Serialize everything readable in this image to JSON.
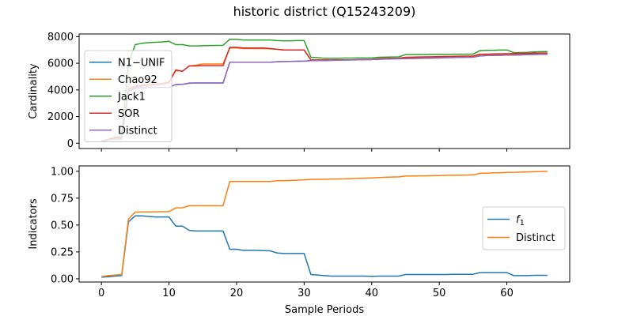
{
  "figure": {
    "title": "historic district (Q15243209)",
    "xlabel": "Sample Periods"
  },
  "chart_data": [
    {
      "type": "line",
      "ylabel": "Cardinality",
      "xlim": [
        -3.3,
        69.3
      ],
      "ylim": [
        -400,
        8200
      ],
      "xticks": [
        0,
        10,
        20,
        30,
        40,
        50,
        60
      ],
      "yticks": [
        0,
        2000,
        4000,
        6000,
        8000
      ],
      "legend_position": "upper-left",
      "series": [
        {
          "name": "N1−UNIF",
          "color": "#1f77b4",
          "x": [
            0,
            1,
            2,
            3,
            4,
            5,
            6,
            7,
            8,
            9,
            10,
            11,
            12,
            13,
            14,
            15,
            16,
            17,
            18,
            19,
            20,
            21,
            22,
            23,
            24,
            25,
            26,
            27,
            28,
            29,
            30,
            31,
            32,
            33,
            34,
            35,
            36,
            37,
            38,
            39,
            40,
            41,
            42,
            43,
            44,
            45,
            46,
            47,
            48,
            49,
            50,
            51,
            52,
            53,
            54,
            55,
            56,
            57,
            58,
            59,
            60,
            61,
            62,
            63,
            64,
            65,
            66
          ],
          "y": [
            120,
            250,
            300,
            320,
            3950,
            4150,
            4180,
            4200,
            4200,
            4200,
            4200,
            4400,
            4420,
            4500,
            4520,
            4520,
            4520,
            4520,
            4520,
            6080,
            6080,
            6080,
            6080,
            6080,
            6080,
            6080,
            6120,
            6130,
            6140,
            6150,
            6160,
            6200,
            6200,
            6200,
            6220,
            6230,
            6240,
            6250,
            6260,
            6270,
            6280,
            6300,
            6320,
            6330,
            6340,
            6350,
            6360,
            6370,
            6380,
            6390,
            6400,
            6420,
            6430,
            6440,
            6450,
            6460,
            6550,
            6580,
            6590,
            6600,
            6610,
            6620,
            6630,
            6650,
            6660,
            6670,
            6680
          ]
        },
        {
          "name": "Chao92",
          "color": "#ff7f0e",
          "x": [
            0,
            1,
            2,
            3,
            4,
            5,
            6,
            7,
            8,
            9,
            10,
            11,
            12,
            13,
            14,
            15,
            16,
            17,
            18,
            19,
            20,
            21,
            22,
            23,
            24,
            25,
            26,
            27,
            28,
            29,
            30,
            31,
            32,
            33,
            34,
            35,
            36,
            37,
            38,
            39,
            40,
            41,
            42,
            43,
            44,
            45,
            46,
            47,
            48,
            49,
            50,
            51,
            52,
            53,
            54,
            55,
            56,
            57,
            58,
            59,
            60,
            61,
            62,
            63,
            64,
            65,
            66
          ],
          "y": [
            130,
            260,
            330,
            400,
            4100,
            4300,
            4350,
            4400,
            4450,
            4500,
            4600,
            5450,
            5400,
            5800,
            5850,
            5950,
            5950,
            5950,
            5950,
            7150,
            7150,
            7100,
            7100,
            7100,
            7100,
            7080,
            7050,
            7000,
            7000,
            7000,
            7000,
            6250,
            6250,
            6250,
            6250,
            6260,
            6260,
            6260,
            6270,
            6280,
            6290,
            6350,
            6360,
            6370,
            6380,
            6400,
            6420,
            6430,
            6440,
            6450,
            6460,
            6470,
            6480,
            6480,
            6490,
            6500,
            6650,
            6660,
            6670,
            6680,
            6690,
            6700,
            6710,
            6720,
            6730,
            6740,
            6750
          ]
        },
        {
          "name": "Jack1",
          "color": "#2ca02c",
          "x": [
            0,
            1,
            2,
            3,
            4,
            5,
            6,
            7,
            8,
            9,
            10,
            11,
            12,
            13,
            14,
            15,
            16,
            17,
            18,
            19,
            20,
            21,
            22,
            23,
            24,
            25,
            26,
            27,
            28,
            29,
            30,
            31,
            32,
            33,
            34,
            35,
            36,
            37,
            38,
            39,
            40,
            41,
            42,
            43,
            44,
            45,
            46,
            47,
            48,
            49,
            50,
            51,
            52,
            53,
            54,
            55,
            56,
            57,
            58,
            59,
            60,
            61,
            62,
            63,
            64,
            65,
            66
          ],
          "y": [
            150,
            300,
            450,
            500,
            6000,
            7400,
            7500,
            7550,
            7580,
            7600,
            7650,
            7400,
            7400,
            7300,
            7300,
            7320,
            7330,
            7340,
            7350,
            7800,
            7800,
            7750,
            7750,
            7750,
            7750,
            7750,
            7700,
            7680,
            7690,
            7700,
            7700,
            6450,
            6420,
            6380,
            6380,
            6380,
            6390,
            6390,
            6400,
            6400,
            6400,
            6450,
            6460,
            6470,
            6480,
            6650,
            6660,
            6660,
            6660,
            6670,
            6670,
            6670,
            6680,
            6680,
            6690,
            6690,
            6950,
            6970,
            6980,
            6990,
            7000,
            6800,
            6810,
            6820,
            6850,
            6870,
            6880
          ]
        },
        {
          "name": "SOR",
          "color": "#d62728",
          "x": [
            0,
            1,
            2,
            3,
            4,
            5,
            6,
            7,
            8,
            9,
            10,
            11,
            12,
            13,
            14,
            15,
            16,
            17,
            18,
            19,
            20,
            21,
            22,
            23,
            24,
            25,
            26,
            27,
            28,
            29,
            30,
            31,
            32,
            33,
            34,
            35,
            36,
            37,
            38,
            39,
            40,
            41,
            42,
            43,
            44,
            45,
            46,
            47,
            48,
            49,
            50,
            51,
            52,
            53,
            54,
            55,
            56,
            57,
            58,
            59,
            60,
            61,
            62,
            63,
            64,
            65,
            66
          ],
          "y": [
            140,
            280,
            400,
            450,
            4050,
            4250,
            4300,
            4350,
            4400,
            4450,
            4550,
            5500,
            5400,
            5800,
            5800,
            5820,
            5820,
            5820,
            5820,
            7200,
            7200,
            7150,
            7150,
            7150,
            7150,
            7100,
            7050,
            7000,
            7000,
            7000,
            7000,
            6250,
            6250,
            6250,
            6250,
            6260,
            6260,
            6260,
            6270,
            6280,
            6290,
            6350,
            6360,
            6370,
            6380,
            6450,
            6460,
            6470,
            6480,
            6490,
            6500,
            6510,
            6520,
            6530,
            6540,
            6550,
            6680,
            6690,
            6700,
            6710,
            6720,
            6730,
            6740,
            6750,
            6760,
            6770,
            6780
          ]
        },
        {
          "name": "Distinct",
          "color": "#9467bd",
          "x": [
            0,
            1,
            2,
            3,
            4,
            5,
            6,
            7,
            8,
            9,
            10,
            11,
            12,
            13,
            14,
            15,
            16,
            17,
            18,
            19,
            20,
            21,
            22,
            23,
            24,
            25,
            26,
            27,
            28,
            29,
            30,
            31,
            32,
            33,
            34,
            35,
            36,
            37,
            38,
            39,
            40,
            41,
            42,
            43,
            44,
            45,
            46,
            47,
            48,
            49,
            50,
            51,
            52,
            53,
            54,
            55,
            56,
            57,
            58,
            59,
            60,
            61,
            62,
            63,
            64,
            65,
            66
          ],
          "y": [
            110,
            240,
            280,
            300,
            3900,
            4100,
            4150,
            4180,
            4200,
            4200,
            4200,
            4400,
            4420,
            4520,
            4520,
            4520,
            4520,
            4520,
            4520,
            6080,
            6080,
            6080,
            6080,
            6080,
            6080,
            6080,
            6120,
            6130,
            6140,
            6150,
            6160,
            6200,
            6200,
            6200,
            6220,
            6230,
            6240,
            6250,
            6260,
            6270,
            6280,
            6300,
            6320,
            6330,
            6340,
            6350,
            6360,
            6370,
            6380,
            6390,
            6400,
            6420,
            6430,
            6440,
            6450,
            6460,
            6550,
            6580,
            6590,
            6600,
            6610,
            6620,
            6630,
            6650,
            6660,
            6670,
            6680
          ]
        }
      ]
    },
    {
      "type": "line",
      "ylabel": "Indicators",
      "xlim": [
        -3.3,
        69.3
      ],
      "ylim": [
        -0.03,
        1.05
      ],
      "xticks": [
        0,
        10,
        20,
        30,
        40,
        50,
        60
      ],
      "yticks": [
        0.0,
        0.25,
        0.5,
        0.75,
        1.0
      ],
      "ytick_labels": [
        "0.00",
        "0.25",
        "0.50",
        "0.75",
        "1.00"
      ],
      "legend_position": "center-right",
      "series": [
        {
          "name": "f1",
          "color": "#1f77b4",
          "x": [
            0,
            1,
            2,
            3,
            4,
            5,
            6,
            7,
            8,
            9,
            10,
            11,
            12,
            13,
            14,
            15,
            16,
            17,
            18,
            19,
            20,
            21,
            22,
            23,
            24,
            25,
            26,
            27,
            28,
            29,
            30,
            31,
            32,
            33,
            34,
            35,
            36,
            37,
            38,
            39,
            40,
            41,
            42,
            43,
            44,
            45,
            46,
            47,
            48,
            49,
            50,
            51,
            52,
            53,
            54,
            55,
            56,
            57,
            58,
            59,
            60,
            61,
            62,
            63,
            64,
            65,
            66
          ],
          "y": [
            0.015,
            0.02,
            0.025,
            0.03,
            0.53,
            0.585,
            0.585,
            0.58,
            0.575,
            0.575,
            0.575,
            0.49,
            0.49,
            0.45,
            0.445,
            0.445,
            0.445,
            0.445,
            0.445,
            0.275,
            0.275,
            0.265,
            0.265,
            0.265,
            0.262,
            0.26,
            0.24,
            0.235,
            0.235,
            0.235,
            0.235,
            0.04,
            0.035,
            0.03,
            0.025,
            0.025,
            0.025,
            0.025,
            0.025,
            0.025,
            0.022,
            0.025,
            0.025,
            0.025,
            0.025,
            0.04,
            0.04,
            0.04,
            0.04,
            0.04,
            0.04,
            0.04,
            0.042,
            0.042,
            0.042,
            0.042,
            0.057,
            0.058,
            0.058,
            0.058,
            0.058,
            0.03,
            0.03,
            0.03,
            0.032,
            0.032,
            0.032
          ]
        },
        {
          "name": "Distinct",
          "color": "#ff7f0e",
          "x": [
            0,
            1,
            2,
            3,
            4,
            5,
            6,
            7,
            8,
            9,
            10,
            11,
            12,
            13,
            14,
            15,
            16,
            17,
            18,
            19,
            20,
            21,
            22,
            23,
            24,
            25,
            26,
            27,
            28,
            29,
            30,
            31,
            32,
            33,
            34,
            35,
            36,
            37,
            38,
            39,
            40,
            41,
            42,
            43,
            44,
            45,
            46,
            47,
            48,
            49,
            50,
            51,
            52,
            53,
            54,
            55,
            56,
            57,
            58,
            59,
            60,
            61,
            62,
            63,
            64,
            65,
            66
          ],
          "y": [
            0.02,
            0.03,
            0.035,
            0.04,
            0.555,
            0.62,
            0.622,
            0.622,
            0.623,
            0.624,
            0.625,
            0.66,
            0.66,
            0.68,
            0.68,
            0.68,
            0.68,
            0.68,
            0.68,
            0.905,
            0.905,
            0.905,
            0.905,
            0.905,
            0.905,
            0.905,
            0.912,
            0.913,
            0.915,
            0.917,
            0.92,
            0.925,
            0.925,
            0.926,
            0.928,
            0.929,
            0.93,
            0.932,
            0.934,
            0.936,
            0.938,
            0.942,
            0.944,
            0.946,
            0.948,
            0.955,
            0.956,
            0.957,
            0.958,
            0.959,
            0.96,
            0.962,
            0.963,
            0.964,
            0.965,
            0.966,
            0.98,
            0.983,
            0.985,
            0.987,
            0.989,
            0.99,
            0.992,
            0.994,
            0.996,
            0.998,
            1.0
          ]
        }
      ]
    }
  ]
}
